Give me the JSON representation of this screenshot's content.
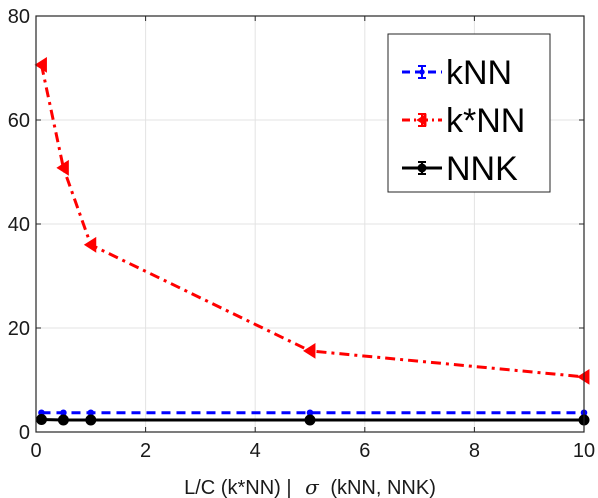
{
  "chart_data": {
    "type": "line",
    "title": "",
    "xlabel": {
      "prefix": "L/C (k*NN) |",
      "symbol": "σ",
      "suffix": "(kNN, NNK)"
    },
    "ylabel": "",
    "xlim": [
      0,
      10
    ],
    "ylim": [
      0,
      80
    ],
    "xticks": [
      0,
      2,
      4,
      6,
      8,
      10
    ],
    "yticks": [
      0,
      20,
      40,
      60,
      80
    ],
    "grid": true,
    "legend_position": "top-right",
    "series": [
      {
        "name": "kNN",
        "x": [
          0.1,
          0.5,
          1,
          5,
          10
        ],
        "y": [
          3.7,
          3.7,
          3.7,
          3.7,
          3.7
        ],
        "color": "#0000ff",
        "line_style": "dashed",
        "marker": "dot"
      },
      {
        "name": "k*NN",
        "x": [
          0.1,
          0.5,
          1,
          5,
          10
        ],
        "y": [
          70.6,
          50.8,
          36.0,
          15.6,
          10.6
        ],
        "color": "#ff0000",
        "line_style": "dash-dot",
        "marker": "left-triangle"
      },
      {
        "name": "NNK",
        "x": [
          0.1,
          0.5,
          1,
          5,
          10
        ],
        "y": [
          2.4,
          2.3,
          2.3,
          2.3,
          2.3
        ],
        "color": "#000000",
        "line_style": "solid",
        "marker": "circle"
      }
    ]
  }
}
